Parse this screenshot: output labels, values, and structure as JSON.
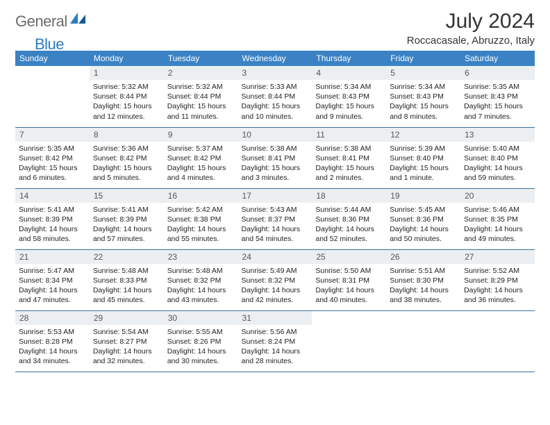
{
  "brand": {
    "part1": "General",
    "part2": "Blue"
  },
  "title": "July 2024",
  "location": "Roccacasale, Abruzzo, Italy",
  "colors": {
    "header_bg": "#3a82c4",
    "header_fg": "#ffffff",
    "daynum_bg": "#eceff1",
    "rule": "#3a6fa0",
    "logo_gray": "#6b6b6b",
    "logo_blue": "#2d7bbf"
  },
  "weekdays": [
    "Sunday",
    "Monday",
    "Tuesday",
    "Wednesday",
    "Thursday",
    "Friday",
    "Saturday"
  ],
  "weeks": [
    [
      null,
      {
        "n": "1",
        "sr": "5:32 AM",
        "ss": "8:44 PM",
        "dl": "15 hours and 12 minutes."
      },
      {
        "n": "2",
        "sr": "5:32 AM",
        "ss": "8:44 PM",
        "dl": "15 hours and 11 minutes."
      },
      {
        "n": "3",
        "sr": "5:33 AM",
        "ss": "8:44 PM",
        "dl": "15 hours and 10 minutes."
      },
      {
        "n": "4",
        "sr": "5:34 AM",
        "ss": "8:43 PM",
        "dl": "15 hours and 9 minutes."
      },
      {
        "n": "5",
        "sr": "5:34 AM",
        "ss": "8:43 PM",
        "dl": "15 hours and 8 minutes."
      },
      {
        "n": "6",
        "sr": "5:35 AM",
        "ss": "8:43 PM",
        "dl": "15 hours and 7 minutes."
      }
    ],
    [
      {
        "n": "7",
        "sr": "5:35 AM",
        "ss": "8:42 PM",
        "dl": "15 hours and 6 minutes."
      },
      {
        "n": "8",
        "sr": "5:36 AM",
        "ss": "8:42 PM",
        "dl": "15 hours and 5 minutes."
      },
      {
        "n": "9",
        "sr": "5:37 AM",
        "ss": "8:42 PM",
        "dl": "15 hours and 4 minutes."
      },
      {
        "n": "10",
        "sr": "5:38 AM",
        "ss": "8:41 PM",
        "dl": "15 hours and 3 minutes."
      },
      {
        "n": "11",
        "sr": "5:38 AM",
        "ss": "8:41 PM",
        "dl": "15 hours and 2 minutes."
      },
      {
        "n": "12",
        "sr": "5:39 AM",
        "ss": "8:40 PM",
        "dl": "15 hours and 1 minute."
      },
      {
        "n": "13",
        "sr": "5:40 AM",
        "ss": "8:40 PM",
        "dl": "14 hours and 59 minutes."
      }
    ],
    [
      {
        "n": "14",
        "sr": "5:41 AM",
        "ss": "8:39 PM",
        "dl": "14 hours and 58 minutes."
      },
      {
        "n": "15",
        "sr": "5:41 AM",
        "ss": "8:39 PM",
        "dl": "14 hours and 57 minutes."
      },
      {
        "n": "16",
        "sr": "5:42 AM",
        "ss": "8:38 PM",
        "dl": "14 hours and 55 minutes."
      },
      {
        "n": "17",
        "sr": "5:43 AM",
        "ss": "8:37 PM",
        "dl": "14 hours and 54 minutes."
      },
      {
        "n": "18",
        "sr": "5:44 AM",
        "ss": "8:36 PM",
        "dl": "14 hours and 52 minutes."
      },
      {
        "n": "19",
        "sr": "5:45 AM",
        "ss": "8:36 PM",
        "dl": "14 hours and 50 minutes."
      },
      {
        "n": "20",
        "sr": "5:46 AM",
        "ss": "8:35 PM",
        "dl": "14 hours and 49 minutes."
      }
    ],
    [
      {
        "n": "21",
        "sr": "5:47 AM",
        "ss": "8:34 PM",
        "dl": "14 hours and 47 minutes."
      },
      {
        "n": "22",
        "sr": "5:48 AM",
        "ss": "8:33 PM",
        "dl": "14 hours and 45 minutes."
      },
      {
        "n": "23",
        "sr": "5:48 AM",
        "ss": "8:32 PM",
        "dl": "14 hours and 43 minutes."
      },
      {
        "n": "24",
        "sr": "5:49 AM",
        "ss": "8:32 PM",
        "dl": "14 hours and 42 minutes."
      },
      {
        "n": "25",
        "sr": "5:50 AM",
        "ss": "8:31 PM",
        "dl": "14 hours and 40 minutes."
      },
      {
        "n": "26",
        "sr": "5:51 AM",
        "ss": "8:30 PM",
        "dl": "14 hours and 38 minutes."
      },
      {
        "n": "27",
        "sr": "5:52 AM",
        "ss": "8:29 PM",
        "dl": "14 hours and 36 minutes."
      }
    ],
    [
      {
        "n": "28",
        "sr": "5:53 AM",
        "ss": "8:28 PM",
        "dl": "14 hours and 34 minutes."
      },
      {
        "n": "29",
        "sr": "5:54 AM",
        "ss": "8:27 PM",
        "dl": "14 hours and 32 minutes."
      },
      {
        "n": "30",
        "sr": "5:55 AM",
        "ss": "8:26 PM",
        "dl": "14 hours and 30 minutes."
      },
      {
        "n": "31",
        "sr": "5:56 AM",
        "ss": "8:24 PM",
        "dl": "14 hours and 28 minutes."
      },
      null,
      null,
      null
    ]
  ]
}
